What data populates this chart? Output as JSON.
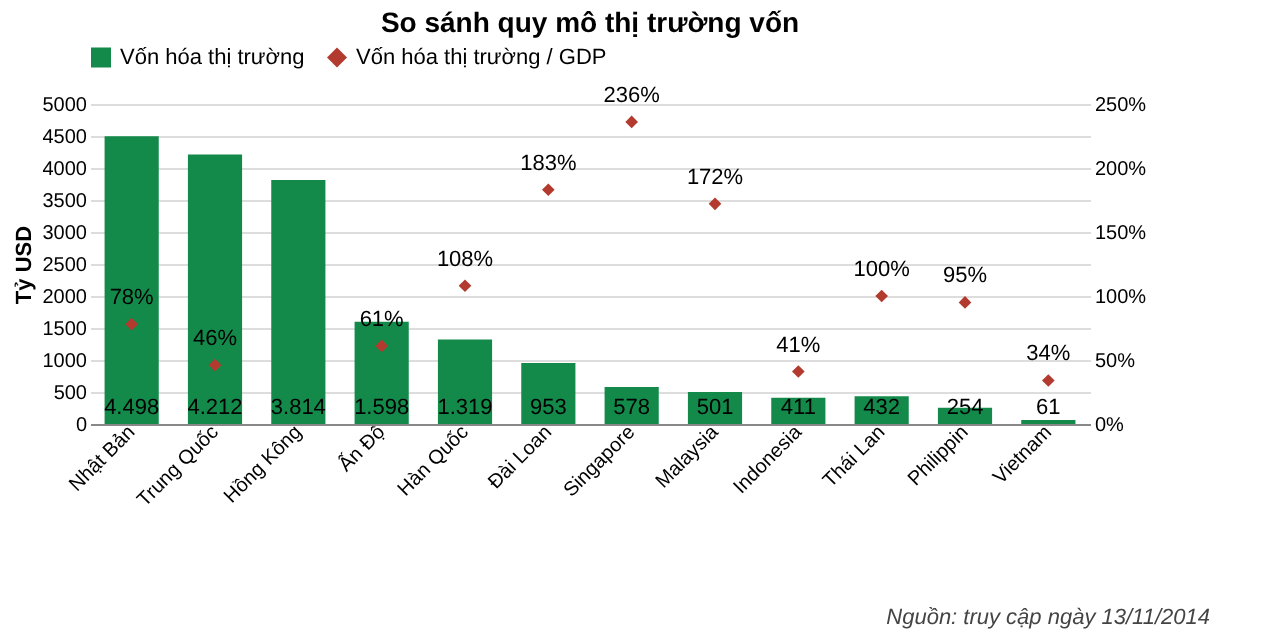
{
  "chart_data": {
    "type": "bar",
    "title": "So sánh quy mô thị trường vốn",
    "ylabel": "Tỷ USD",
    "categories": [
      "Nhật Bản",
      "Trung Quốc",
      "Hồng Kông",
      "Ấn Độ",
      "Hàn Quốc",
      "Đài Loan",
      "Singapore",
      "Malaysia",
      "Indonesia",
      "Thái Lan",
      "Philippin",
      "Vietnam"
    ],
    "series": [
      {
        "name": "Vốn hóa thị trường",
        "color": "#138a4a",
        "values": [
          4498,
          4212,
          3814,
          1598,
          1319,
          953,
          578,
          501,
          411,
          432,
          254,
          61
        ],
        "value_labels": [
          "4.498",
          "4.212",
          "3.814",
          "1.598",
          "1.319",
          "953",
          "578",
          "501",
          "411",
          "432",
          "254",
          "61"
        ]
      },
      {
        "name": "Vốn hóa thị trường / GDP",
        "type": "scatter",
        "axis": "y2",
        "marker": "diamond",
        "color": "#b33a2e",
        "values": [
          78,
          46,
          null,
          61,
          108,
          183,
          236,
          172,
          41,
          100,
          95,
          34
        ],
        "value_labels": [
          "78%",
          "46%",
          null,
          "61%",
          "108%",
          "183%",
          "236%",
          "172%",
          "41%",
          "100%",
          "95%",
          "34%"
        ]
      }
    ],
    "ylim": [
      0,
      5000
    ],
    "yticks": [
      0,
      500,
      1000,
      1500,
      2000,
      2500,
      3000,
      3500,
      4000,
      4500,
      5000
    ],
    "y2lim": [
      0,
      250
    ],
    "y2ticks": [
      {
        "value": 0,
        "label": "0%"
      },
      {
        "value": 50,
        "label": "50%"
      },
      {
        "value": 100,
        "label": "100%"
      },
      {
        "value": 150,
        "label": "150%"
      },
      {
        "value": 200,
        "label": "200%"
      },
      {
        "value": 250,
        "label": "250%"
      }
    ],
    "grid": "y",
    "legend": "top",
    "annotations": [
      "Nguồn: truy cập ngày 13/11/2014"
    ]
  }
}
